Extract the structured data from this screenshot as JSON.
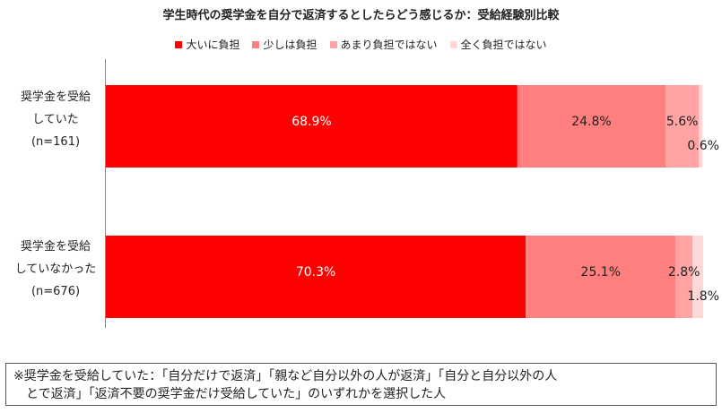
{
  "chart_data": {
    "type": "bar",
    "orientation": "horizontal-stacked",
    "title": "学生時代の奨学金を自分で返済するとしたらどう感じるか：受給経験別比較",
    "series": [
      {
        "name": "大いに負担",
        "color": "#ff0000"
      },
      {
        "name": "少しは負担",
        "color": "#ff7f7f"
      },
      {
        "name": "あまり負担ではない",
        "color": "#ffa3a3"
      },
      {
        "name": "全く負担ではない",
        "color": "#ffd7d7"
      }
    ],
    "categories": [
      {
        "lines": [
          "奨学金を受給",
          "していた",
          "(n=161)"
        ],
        "values": [
          68.9,
          24.8,
          5.6,
          0.6
        ]
      },
      {
        "lines": [
          "奨学金を受給",
          "していなかった",
          "(n=676)"
        ],
        "values": [
          70.3,
          25.1,
          2.8,
          1.8
        ]
      }
    ],
    "value_labels": [
      [
        "68.9%",
        "24.8%",
        "5.6%",
        "0.6%"
      ],
      [
        "70.3%",
        "25.1%",
        "2.8%",
        "1.8%"
      ]
    ],
    "xlim": [
      0,
      100
    ],
    "grid": false,
    "legend_position": "top"
  },
  "note": {
    "line1": "※奨学金を受給していた：「自分だけで返済」「親など自分以外の人が返済」「自分と自分以外の人",
    "line2": "　とで返済」「返済不要の奨学金だけ受給していた」のいずれかを選択した人"
  }
}
